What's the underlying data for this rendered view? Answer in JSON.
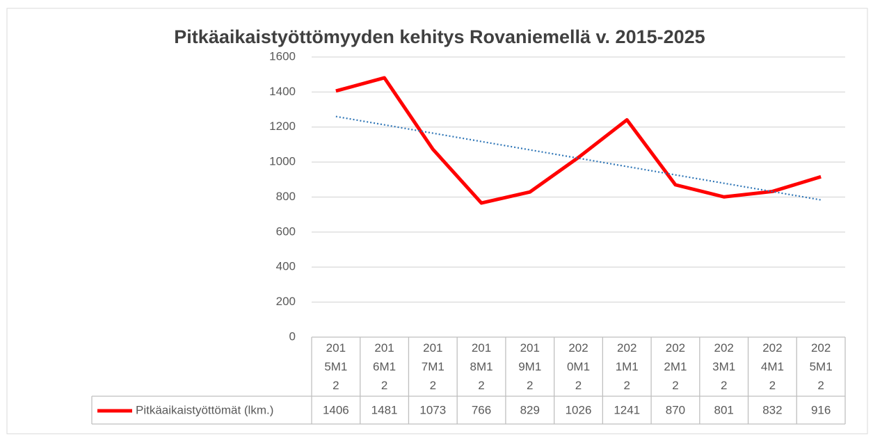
{
  "chart_data": {
    "type": "line",
    "title": "Pitkäaikaistyöttömyyden kehitys Rovaniemellä v. 2015-2025",
    "categories": [
      "2015M12",
      "2016M12",
      "2017M12",
      "2018M12",
      "2019M12",
      "2020M12",
      "2021M12",
      "2022M12",
      "2023M12",
      "2024M12",
      "2025M12"
    ],
    "series": [
      {
        "name": "Pitkäaikaistyöttömät (lkm.)",
        "color": "#ff0000",
        "values": [
          1406,
          1481,
          1073,
          766,
          829,
          1026,
          1241,
          870,
          801,
          832,
          916
        ]
      }
    ],
    "ylim": [
      0,
      1600
    ],
    "yticks": [
      0,
      200,
      400,
      600,
      800,
      1000,
      1200,
      1400,
      1600
    ],
    "grid": true,
    "data_table": true,
    "trendline": {
      "type": "linear",
      "color": "#2e75b6",
      "style": "dotted"
    }
  }
}
